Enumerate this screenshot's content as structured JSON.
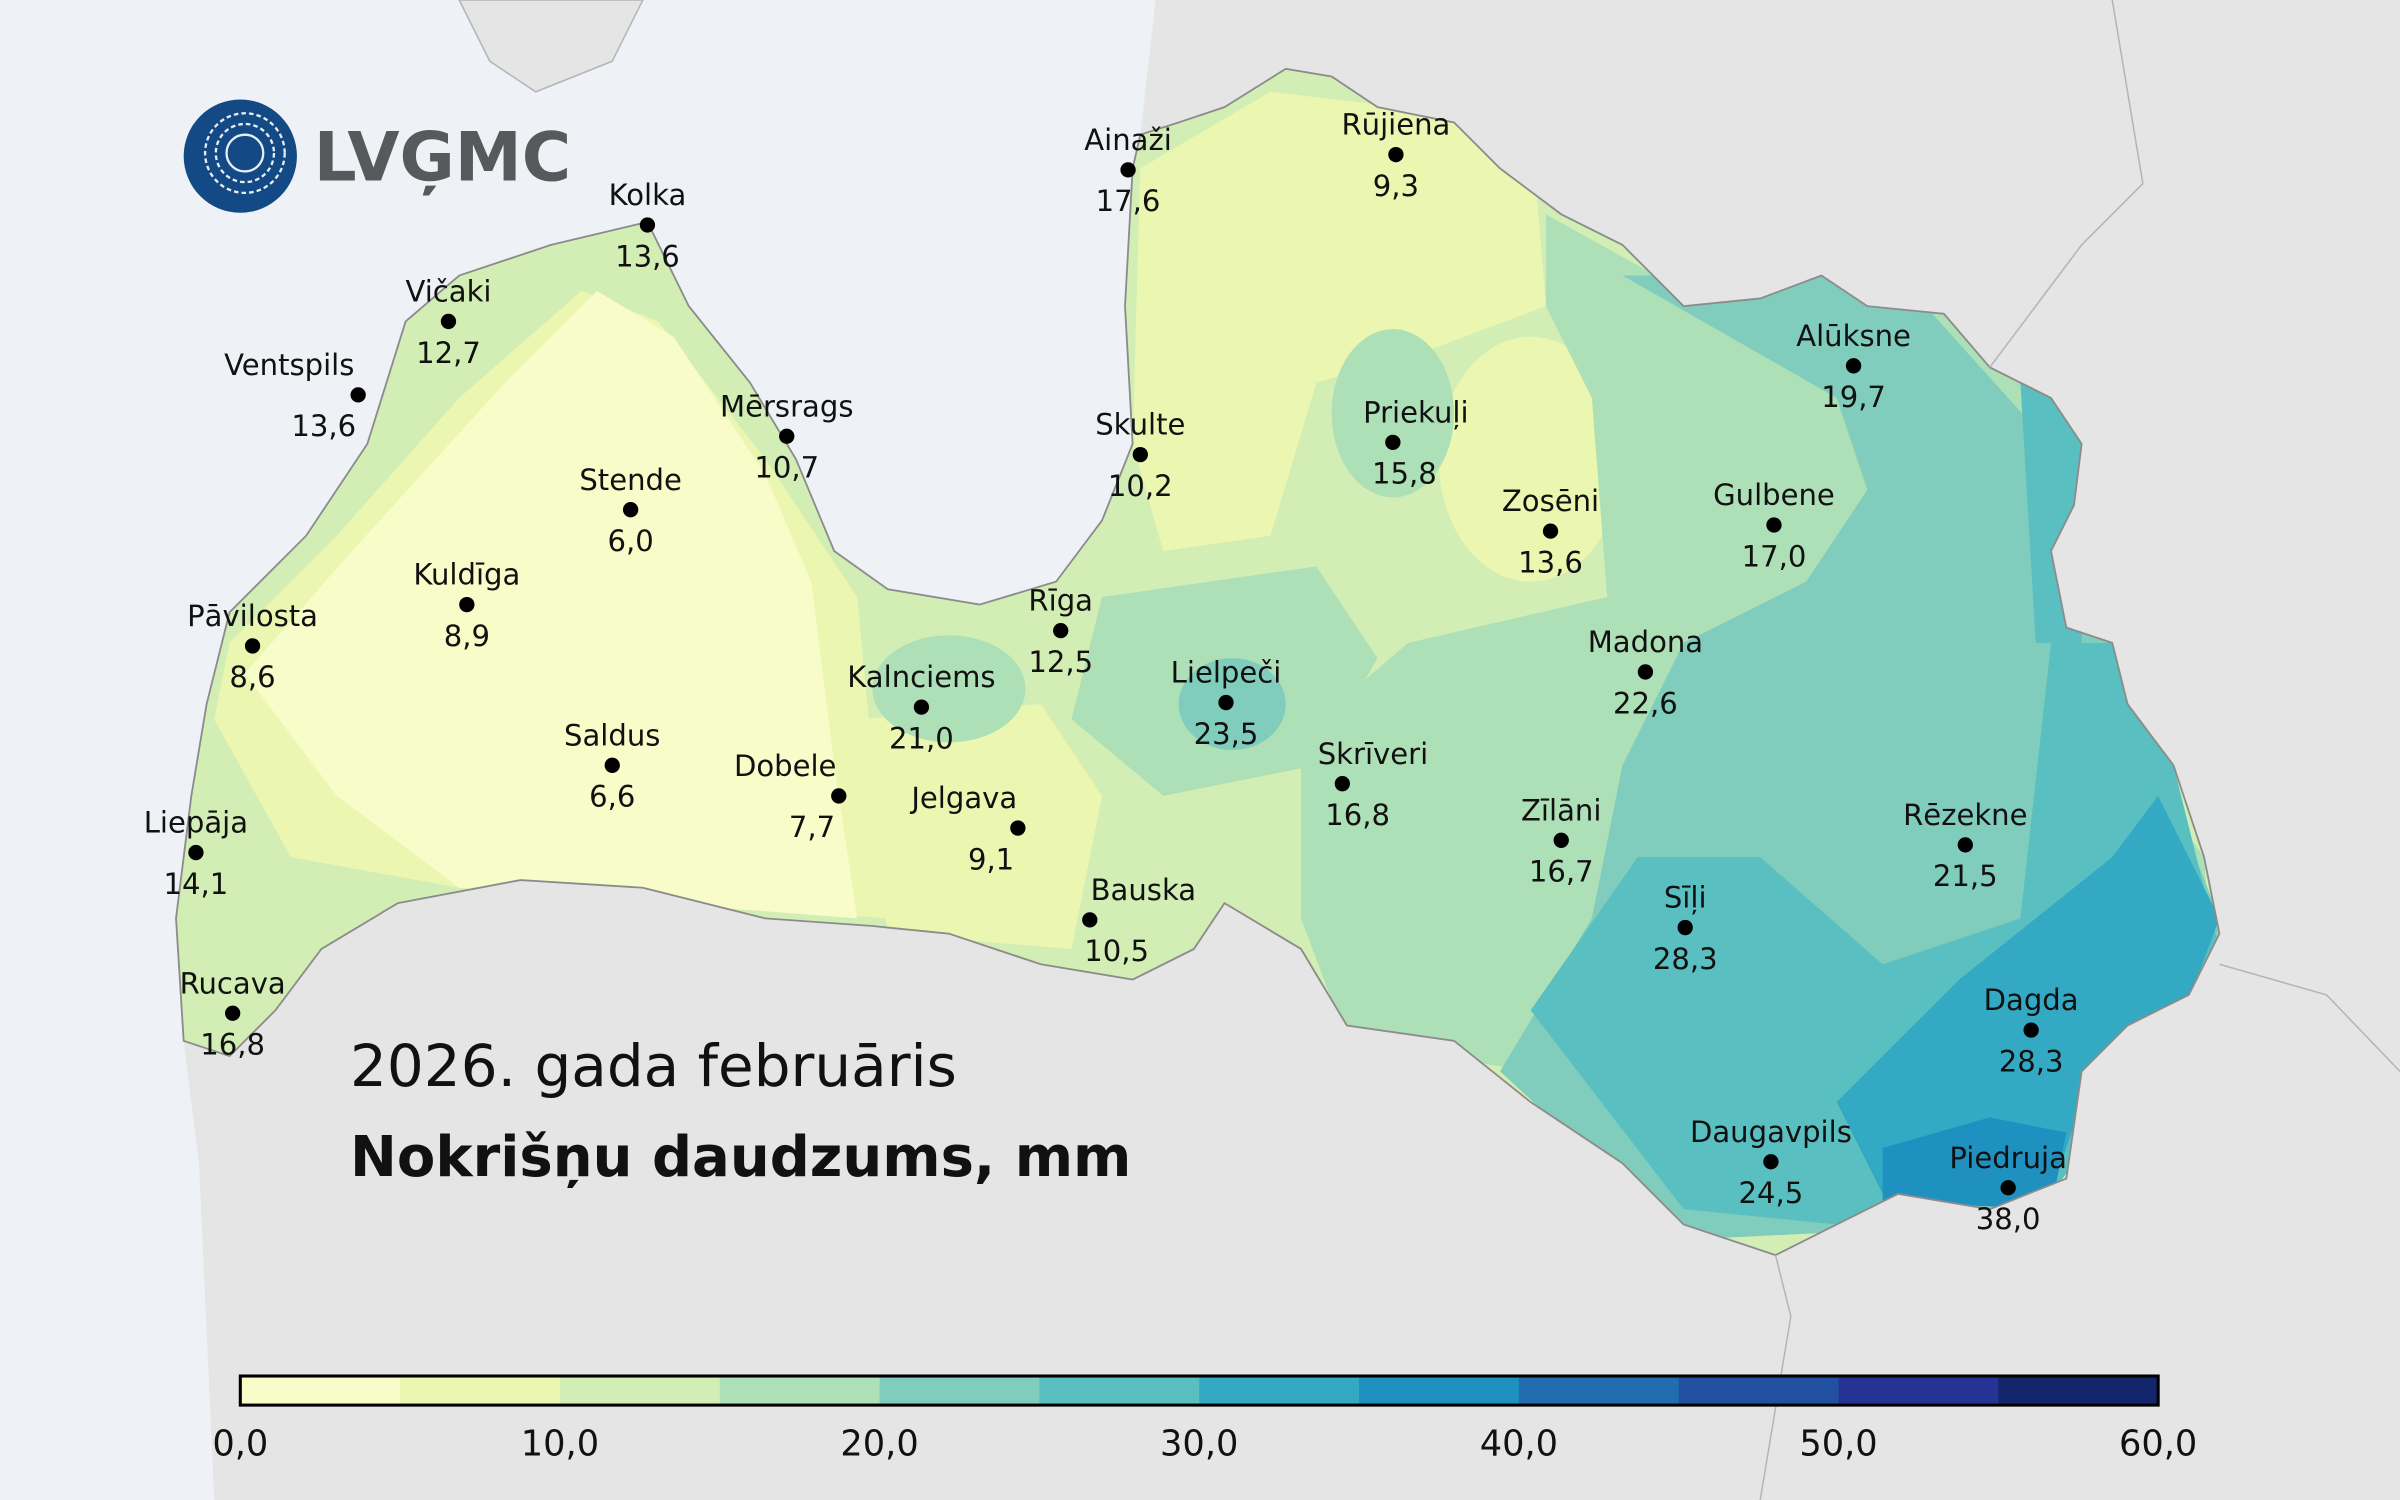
{
  "logo": {
    "text": "LVĢMC",
    "color": "#134a85"
  },
  "title": {
    "period": "2026. gada februāris",
    "variable": "Nokrišņu daudzums, mm"
  },
  "colors": {
    "sea": "#eef2f6",
    "neighbor_land": "#e5e5e5",
    "borders": "#8c8c8c"
  },
  "legend": {
    "ticks": [
      "0,0",
      "10,0",
      "20,0",
      "30,0",
      "40,0",
      "50,0",
      "60,0"
    ],
    "range": [
      0,
      60
    ],
    "step": 5,
    "colors": [
      "#f7fcc8",
      "#ebf7b1",
      "#d3eeb4",
      "#aee0b7",
      "#80cdbe",
      "#59bfc1",
      "#34a9c3",
      "#1e91c0",
      "#216daf",
      "#2351a1",
      "#253494",
      "#13266b"
    ]
  },
  "stations": [
    {
      "name": "Ainaži",
      "value": "17,6"
    },
    {
      "name": "Rūjiena",
      "value": "9,3"
    },
    {
      "name": "Kolka",
      "value": "13,6"
    },
    {
      "name": "Vičaki",
      "value": "12,7"
    },
    {
      "name": "Ventspils",
      "value": "13,6"
    },
    {
      "name": "Mērsrags",
      "value": "10,7"
    },
    {
      "name": "Skulte",
      "value": "10,2"
    },
    {
      "name": "Priekuļi",
      "value": "15,8"
    },
    {
      "name": "Alūksne",
      "value": "19,7"
    },
    {
      "name": "Stende",
      "value": "6,0"
    },
    {
      "name": "Zosēni",
      "value": "13,6"
    },
    {
      "name": "Gulbene",
      "value": "17,0"
    },
    {
      "name": "Kuldīga",
      "value": "8,9"
    },
    {
      "name": "Pāvilosta",
      "value": "8,6"
    },
    {
      "name": "Rīga",
      "value": "12,5"
    },
    {
      "name": "Kalnciems",
      "value": "21,0"
    },
    {
      "name": "Lielpeči",
      "value": "23,5"
    },
    {
      "name": "Madona",
      "value": "22,6"
    },
    {
      "name": "Saldus",
      "value": "6,6"
    },
    {
      "name": "Dobele",
      "value": "7,7"
    },
    {
      "name": "Skrīveri",
      "value": "16,8"
    },
    {
      "name": "Jelgava",
      "value": "9,1"
    },
    {
      "name": "Liepāja",
      "value": "14,1"
    },
    {
      "name": "Zīlāni",
      "value": "16,7"
    },
    {
      "name": "Rēzekne",
      "value": "21,5"
    },
    {
      "name": "Sīļi",
      "value": "28,3"
    },
    {
      "name": "Bauska",
      "value": "10,5"
    },
    {
      "name": "Rucava",
      "value": "16,8"
    },
    {
      "name": "Dagda",
      "value": "28,3"
    },
    {
      "name": "Daugavpils",
      "value": "24,5"
    },
    {
      "name": "Piedruja",
      "value": "38,0"
    }
  ]
}
